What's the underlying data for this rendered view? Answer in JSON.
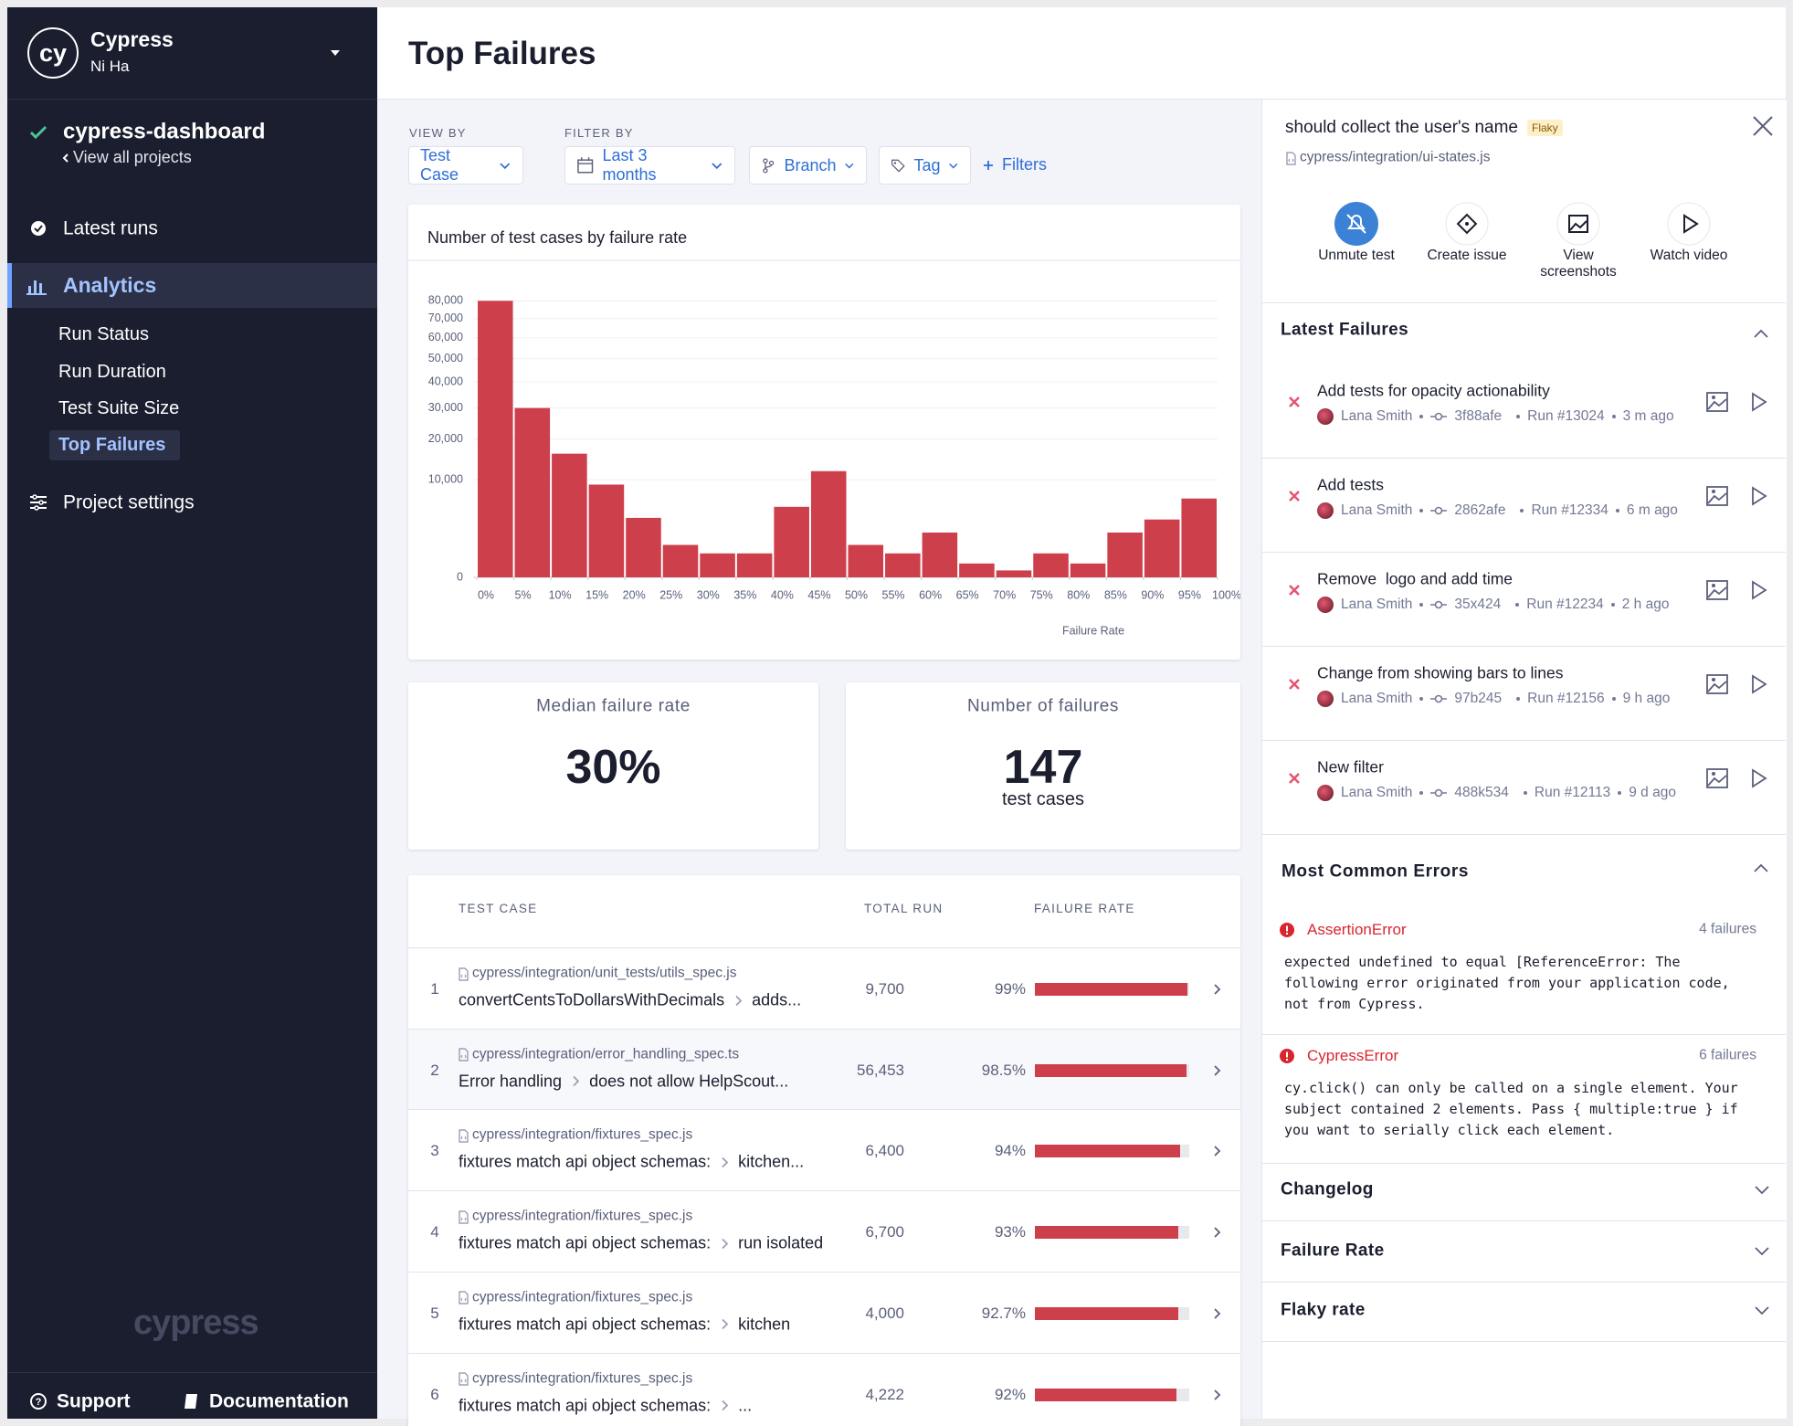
{
  "sidebar": {
    "logo": "cy",
    "org": "Cypress",
    "user": "Ni Ha",
    "project": "cypress-dashboard",
    "back": "View all projects",
    "nav": [
      "Latest runs",
      "Analytics"
    ],
    "active_nav": 1,
    "subnav": [
      "Run Status",
      "Run Duration",
      "Test Suite Size",
      "Top Failures"
    ],
    "active_subnav": 3,
    "settings": "Project settings",
    "watermark": "cypress",
    "footer": [
      "Support",
      "Documentation"
    ]
  },
  "header": {
    "title": "Top Failures"
  },
  "filters": {
    "view_by_label": "VIEW BY",
    "view_by": "Test Case",
    "filter_by_label": "FILTER BY",
    "items": [
      "Last 3 months",
      "Branch",
      "Tag"
    ],
    "add": "Filters"
  },
  "chart_data": {
    "type": "histogram",
    "title": "Number of test cases by failure rate",
    "x_label": "Failure Rate",
    "bins": [
      0,
      5,
      10,
      15,
      20,
      25,
      30,
      35,
      40,
      45,
      50,
      55,
      60,
      65,
      70,
      75,
      80,
      85,
      90,
      95,
      100
    ],
    "values": [
      80000,
      30000,
      16000,
      9000,
      3700,
      1100,
      600,
      600,
      5200,
      11800,
      1100,
      600,
      2100,
      200,
      50,
      600,
      200,
      2100,
      3500,
      6500
    ],
    "color": "#cc3f4b",
    "xlim": [
      0,
      100
    ],
    "xticks": [
      {
        "value": 0,
        "label": "0%"
      },
      {
        "value": 5,
        "label": "5%"
      },
      {
        "value": 10,
        "label": "10%"
      },
      {
        "value": 15,
        "label": "15%"
      },
      {
        "value": 20,
        "label": "20%"
      },
      {
        "value": 25,
        "label": "25%"
      },
      {
        "value": 30,
        "label": "30%"
      },
      {
        "value": 35,
        "label": "35%"
      },
      {
        "value": 40,
        "label": "40%"
      },
      {
        "value": 45,
        "label": "45%"
      },
      {
        "value": 50,
        "label": "50%"
      },
      {
        "value": 55,
        "label": "55%"
      },
      {
        "value": 60,
        "label": "60%"
      },
      {
        "value": 65,
        "label": "65%"
      },
      {
        "value": 70,
        "label": "70%"
      },
      {
        "value": 75,
        "label": "75%"
      },
      {
        "value": 80,
        "label": "80%"
      },
      {
        "value": 85,
        "label": "85%"
      },
      {
        "value": 90,
        "label": "90%"
      },
      {
        "value": 95,
        "label": "95%"
      },
      {
        "value": 100,
        "label": "100%"
      }
    ],
    "ylim": [
      0,
      85000
    ],
    "yscale": "sqrt",
    "yticks": [
      0,
      {
        "value": 10000,
        "label": "10,000"
      },
      {
        "value": 20000,
        "label": "20,000"
      },
      {
        "value": 30000,
        "label": "30,000"
      },
      {
        "value": 40000,
        "label": "40,000"
      },
      {
        "value": 50000,
        "label": "50,000"
      },
      {
        "value": 60000,
        "label": "60,000"
      },
      {
        "value": 70000,
        "label": "70,000"
      },
      {
        "value": 80000,
        "label": "80,000"
      }
    ],
    "grid": true
  },
  "stats": [
    {
      "label": "Median failure rate",
      "value": "30%"
    },
    {
      "label": "Number of failures",
      "value": "147",
      "unit": "test cases"
    }
  ],
  "table": {
    "headers": [
      "TEST CASE",
      "TOTAL RUN",
      "FAILURE RATE"
    ],
    "rows": [
      {
        "index": "1",
        "file": "cypress/integration/unit_tests/utils_spec.js",
        "parts": [
          "convertCentsToDollarsWithDecimals",
          "adds..."
        ],
        "total_run": "9,700",
        "failure_rate": 99,
        "failure_rate_label": "99%"
      },
      {
        "index": "2",
        "file": "cypress/integration/error_handling_spec.ts",
        "parts": [
          "Error handling",
          "does not allow HelpScout..."
        ],
        "total_run": "56,453",
        "failure_rate": 98.5,
        "failure_rate_label": "98.5%"
      },
      {
        "index": "3",
        "file": "cypress/integration/fixtures_spec.js",
        "parts": [
          "fixtures match api object schemas:",
          "kitchen..."
        ],
        "total_run": "6,400",
        "failure_rate": 94,
        "failure_rate_label": "94%"
      },
      {
        "index": "4",
        "file": "cypress/integration/fixtures_spec.js",
        "parts": [
          "fixtures match api object schemas:",
          "run isolated"
        ],
        "total_run": "6,700",
        "failure_rate": 93,
        "failure_rate_label": "93%"
      },
      {
        "index": "5",
        "file": "cypress/integration/fixtures_spec.js",
        "parts": [
          "fixtures match api object schemas:",
          "kitchen"
        ],
        "total_run": "4,000",
        "failure_rate": 92.7,
        "failure_rate_label": "92.7%"
      },
      {
        "index": "6",
        "file": "cypress/integration/fixtures_spec.js",
        "parts": [
          "fixtures match api object schemas:",
          "..."
        ],
        "total_run": "4,222",
        "failure_rate": 92,
        "failure_rate_label": "92%"
      }
    ]
  },
  "panel": {
    "title": "should collect the user's name",
    "badge": "Flaky",
    "file": "cypress/integration/ui-states.js",
    "actions": [
      "Unmute test",
      "Create issue",
      "View screenshots",
      "Watch video"
    ],
    "latest_title": "Latest Failures",
    "latest": [
      {
        "title": "Add tests for opacity actionability",
        "author": "Lana Smith",
        "commit": "3f88afe",
        "run": "Run #13024",
        "time": "3 m ago"
      },
      {
        "title": "Add tests",
        "author": "Lana Smith",
        "commit": "2862afe",
        "run": "Run #12334",
        "time": "6 m ago"
      },
      {
        "title": "Remove  logo and add time",
        "author": "Lana Smith",
        "commit": "35x424",
        "run": "Run #12234",
        "time": "2 h ago"
      },
      {
        "title": "Change from showing bars to lines",
        "author": "Lana Smith",
        "commit": "97b245",
        "run": "Run #12156",
        "time": "9 h ago"
      },
      {
        "title": "New filter",
        "author": "Lana Smith",
        "commit": "488k534",
        "run": "Run #12113",
        "time": "9 d ago"
      }
    ],
    "errors_title": "Most Common Errors",
    "errors": [
      {
        "name": "AssertionError",
        "count": "4 failures",
        "message": "expected undefined to equal [ReferenceError: The following error originated from your application code, not from Cypress."
      },
      {
        "name": "CypressError",
        "count": "6 failures",
        "message": "cy.click() can only be called on a single element. Your subject contained 2 elements. Pass { multiple:true } if you want to serially click each element."
      }
    ],
    "collapsed": [
      "Changelog",
      "Failure Rate",
      "Flaky rate"
    ]
  }
}
